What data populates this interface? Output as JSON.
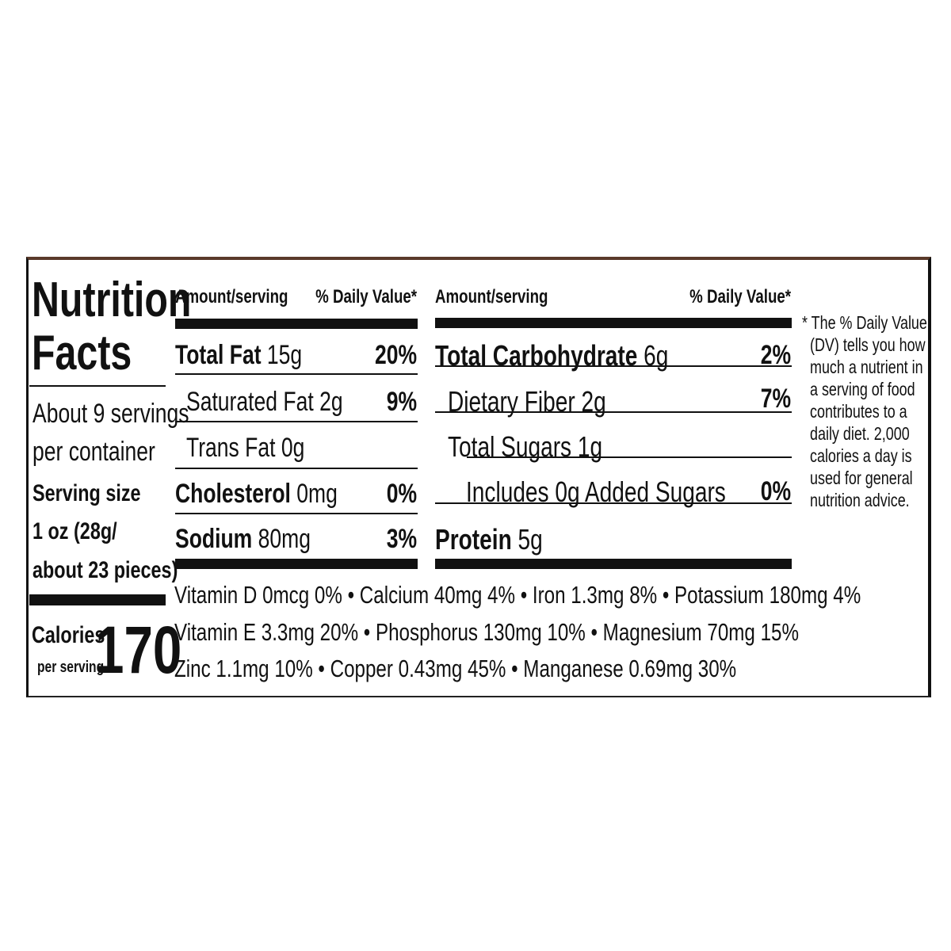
{
  "title": {
    "line1": "Nutrition",
    "line2": "Facts"
  },
  "servings": {
    "per_container_line1": "About 9 servings",
    "per_container_line2": "per container",
    "serving_size_label": "Serving size",
    "serving_size_line1": "1 oz (28g/",
    "serving_size_line2": "about 23 pieces)"
  },
  "calories": {
    "label": "Calories",
    "sublabel": "per serving",
    "value": "170"
  },
  "headers": {
    "amount": "Amount/serving",
    "dv": "% Daily Value*"
  },
  "left_nutrients": [
    {
      "name": "Total Fat",
      "amount": "15g",
      "dv": "20%"
    },
    {
      "name": "Saturated Fat",
      "amount": "2g",
      "dv": "9%"
    },
    {
      "name": "Trans Fat",
      "amount": "0g",
      "dv": ""
    },
    {
      "name": "Cholesterol",
      "amount": "0mg",
      "dv": "0%"
    },
    {
      "name": "Sodium",
      "amount": "80mg",
      "dv": "3%"
    }
  ],
  "right_nutrients": [
    {
      "name": "Total Carbohydrate",
      "amount": "6g",
      "dv": "2%"
    },
    {
      "name": "Dietary Fiber",
      "amount": "2g",
      "dv": "7%"
    },
    {
      "name": "Total Sugars",
      "amount": "1g",
      "dv": ""
    },
    {
      "name": "Includes 0g Added Sugars",
      "amount": "",
      "dv": "0%"
    },
    {
      "name": "Protein",
      "amount": "5g",
      "dv": ""
    }
  ],
  "micronutrients": [
    "Vitamin D 0mcg 0% • Calcium 40mg 4% • Iron 1.3mg 8% • Potassium 180mg 4%",
    "Vitamin E 3.3mg 20% • Phosphorus 130mg 10% • Magnesium 70mg 15%",
    "Zinc 1.1mg 10% • Copper 0.43mg 45% • Manganese 0.69mg 30%"
  ],
  "footnote": [
    "* The % Daily Value",
    "(DV) tells you how",
    "much a nutrient in",
    "a serving of food",
    "contributes to a",
    "daily diet. 2,000",
    "calories a day is",
    "used for general",
    "nutrition advice."
  ]
}
